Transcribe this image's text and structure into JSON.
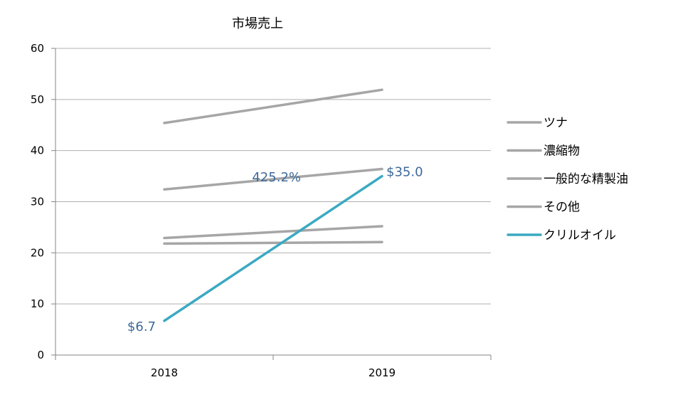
{
  "chart_data": {
    "type": "line",
    "title": "市場売上",
    "xlabel": "",
    "ylabel": "",
    "categories": [
      "2018",
      "2019"
    ],
    "ylim": [
      0,
      60
    ],
    "yticks": [
      0,
      10,
      20,
      30,
      40,
      50,
      60
    ],
    "grid": true,
    "legend_position": "right",
    "series": [
      {
        "name": "ツナ",
        "values": [
          45.4,
          51.9
        ],
        "color": "#a6a6a6"
      },
      {
        "name": "濃縮物",
        "values": [
          21.8,
          22.1
        ],
        "color": "#a6a6a6"
      },
      {
        "name": "一般的な精製油",
        "values": [
          32.4,
          36.4
        ],
        "color": "#a6a6a6"
      },
      {
        "name": "その他",
        "values": [
          22.9,
          25.2
        ],
        "color": "#a6a6a6"
      },
      {
        "name": "クリルオイル",
        "values": [
          6.7,
          35.0
        ],
        "color": "#3ba9c2"
      }
    ],
    "annotations": [
      {
        "text": "$6.7",
        "series": "クリルオイル",
        "category": "2018"
      },
      {
        "text": "$35.0",
        "series": "クリルオイル",
        "category": "2019"
      },
      {
        "text": "425.2%",
        "series": "クリルオイル",
        "category": "mid"
      }
    ],
    "label_color": "#3e6a9a",
    "gridline_color": "#b0b0b0"
  }
}
